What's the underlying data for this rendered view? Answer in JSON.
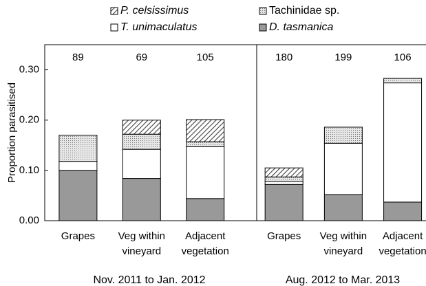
{
  "chart_data": [
    {
      "type": "bar",
      "stacked": true,
      "group_label": "Nov. 2011 to Jan. 2012",
      "ylabel": "Proportion parasitised",
      "ylim": [
        0,
        0.35
      ],
      "yticks": [
        {
          "value": 0,
          "label": "0.00"
        },
        {
          "value": 0.1,
          "label": "0.10"
        },
        {
          "value": 0.2,
          "label": "0.20"
        },
        {
          "value": 0.3,
          "label": "0.30"
        }
      ],
      "categories": [
        [
          "Grapes"
        ],
        [
          "Veg within",
          "vineyard"
        ],
        [
          "Adjacent",
          "vegetation"
        ]
      ],
      "sample_sizes": [
        89,
        69,
        105
      ],
      "series": [
        {
          "name": "D. tasmanica",
          "italic": true,
          "color": "#999999",
          "pattern": null,
          "values": [
            0.1,
            0.084,
            0.044
          ]
        },
        {
          "name": "T. unimaculatus",
          "italic": true,
          "color": "#ffffff",
          "pattern": null,
          "values": [
            0.018,
            0.058,
            0.103
          ]
        },
        {
          "name": "Tachinidae sp.",
          "italic": false,
          "color": "#d9d9d9",
          "pattern": "dots",
          "values": [
            0.052,
            0.03,
            0.01
          ]
        },
        {
          "name": "P. celsissimus",
          "italic": true,
          "color": "#404040",
          "pattern": "hatch",
          "values": [
            0,
            0.028,
            0.044
          ]
        }
      ]
    },
    {
      "type": "bar",
      "stacked": true,
      "group_label": "Aug. 2012 to Mar. 2013",
      "ylim": [
        0,
        0.35
      ],
      "categories": [
        [
          "Grapes"
        ],
        [
          "Veg within",
          "vineyard"
        ],
        [
          "Adjacent",
          "vegetation"
        ]
      ],
      "sample_sizes": [
        180,
        199,
        106
      ],
      "series": [
        {
          "color": "#999999",
          "pattern": null,
          "values": [
            0.072,
            0.052,
            0.037
          ]
        },
        {
          "color": "#ffffff",
          "pattern": null,
          "values": [
            0.006,
            0.102,
            0.237
          ]
        },
        {
          "color": "#d9d9d9",
          "pattern": "dots",
          "values": [
            0.009,
            0.032,
            0.009
          ]
        },
        {
          "color": "#404040",
          "pattern": "hatch",
          "values": [
            0.018,
            0,
            0
          ]
        }
      ]
    }
  ]
}
